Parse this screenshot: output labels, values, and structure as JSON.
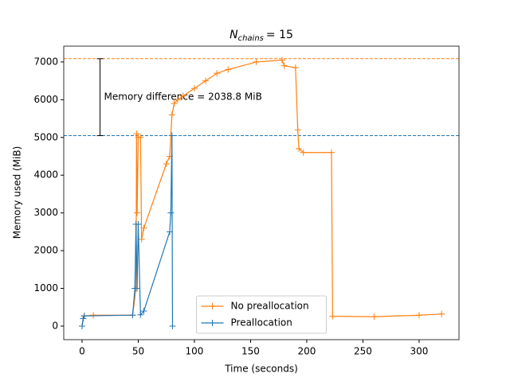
{
  "chart_data": {
    "type": "line",
    "title": {
      "symbol": "N",
      "subscript": "chains",
      "text": "= 15"
    },
    "x_label": "Time (seconds)",
    "y_label": "Memory used (MiB)",
    "xlim": [
      -16.3,
      335.5
    ],
    "ylim": [
      -359,
      7420
    ],
    "xticks": [
      0,
      50,
      100,
      150,
      200,
      250,
      300
    ],
    "yticks": [
      0,
      1000,
      2000,
      3000,
      4000,
      5000,
      6000,
      7000
    ],
    "legend": "lower center",
    "series": [
      {
        "name": "No preallocation",
        "color": "#ff7f0e",
        "x": [
          0,
          1,
          2,
          10,
          45,
          48,
          48.5,
          49,
          50,
          52,
          53,
          55,
          75,
          78,
          80,
          82,
          85,
          90,
          100,
          110,
          120,
          130,
          155,
          178,
          180,
          190,
          192,
          193,
          197,
          222,
          223,
          260,
          300,
          320
        ],
        "values": [
          0,
          200,
          270,
          290,
          290,
          1000,
          5100,
          3000,
          5000,
          5000,
          2300,
          2600,
          4300,
          4500,
          5600,
          5900,
          6000,
          6100,
          6300,
          6500,
          6700,
          6800,
          7000,
          7050,
          6900,
          6850,
          5200,
          4700,
          4600,
          4600,
          260,
          250,
          290,
          320
        ]
      },
      {
        "name": "Preallocation",
        "color": "#1f77b4",
        "x": [
          0,
          1,
          2,
          45,
          47,
          48,
          49,
          50,
          52,
          55,
          78,
          79,
          80,
          80.5
        ],
        "values": [
          0,
          200,
          270,
          290,
          1000,
          2700,
          1000,
          2700,
          300,
          400,
          2500,
          3000,
          5050,
          0
        ]
      }
    ],
    "hlines": [
      {
        "y": 7087,
        "color": "#ff7f0e"
      },
      {
        "y": 5048,
        "color": "#1f77b4"
      }
    ],
    "annotation": {
      "text": "Memory difference = 2038.8 MiB",
      "x": 16,
      "ymin": 5048,
      "ymax": 7087
    }
  }
}
